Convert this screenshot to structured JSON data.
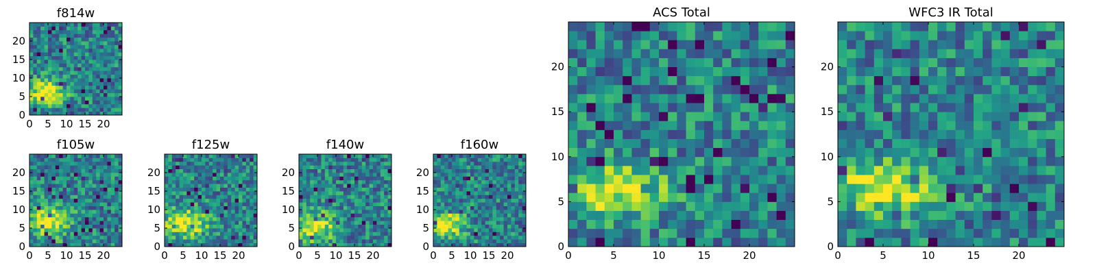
{
  "chart_data": [
    {
      "type": "heatmap",
      "title": "f814w",
      "colormap": "viridis",
      "grid_shape": [
        25,
        25
      ],
      "xlim": [
        0,
        25
      ],
      "ylim": [
        0,
        25
      ],
      "xticks": [
        0,
        5,
        10,
        15,
        20
      ],
      "yticks": [
        0,
        5,
        10,
        15,
        20
      ],
      "bright_region": {
        "x": [
          0,
          9
        ],
        "y": [
          3,
          9
        ]
      },
      "seed": 11
    },
    {
      "type": "heatmap",
      "title": "f105w",
      "colormap": "viridis",
      "grid_shape": [
        25,
        25
      ],
      "xlim": [
        0,
        25
      ],
      "ylim": [
        0,
        25
      ],
      "xticks": [
        0,
        5,
        10,
        15,
        20
      ],
      "yticks": [
        0,
        5,
        10,
        15,
        20
      ],
      "bright_region": {
        "x": [
          0,
          10
        ],
        "y": [
          3,
          11
        ]
      },
      "seed": 23
    },
    {
      "type": "heatmap",
      "title": "f125w",
      "colormap": "viridis",
      "grid_shape": [
        25,
        25
      ],
      "xlim": [
        0,
        25
      ],
      "ylim": [
        0,
        25
      ],
      "xticks": [
        0,
        5,
        10,
        15,
        20
      ],
      "yticks": [
        0,
        5,
        10,
        15,
        20
      ],
      "bright_region": {
        "x": [
          0,
          11
        ],
        "y": [
          3,
          10
        ]
      },
      "seed": 37
    },
    {
      "type": "heatmap",
      "title": "f140w",
      "colormap": "viridis",
      "grid_shape": [
        25,
        25
      ],
      "xlim": [
        0,
        25
      ],
      "ylim": [
        0,
        25
      ],
      "xticks": [
        0,
        5,
        10,
        15,
        20
      ],
      "yticks": [
        0,
        5,
        10,
        15,
        20
      ],
      "bright_region": {
        "x": [
          0,
          9
        ],
        "y": [
          2,
          9
        ]
      },
      "seed": 41
    },
    {
      "type": "heatmap",
      "title": "f160w",
      "colormap": "viridis",
      "grid_shape": [
        25,
        25
      ],
      "xlim": [
        0,
        25
      ],
      "ylim": [
        0,
        25
      ],
      "xticks": [
        0,
        5,
        10,
        15,
        20
      ],
      "yticks": [
        0,
        5,
        10,
        15,
        20
      ],
      "bright_region": {
        "x": [
          0,
          8
        ],
        "y": [
          3,
          9
        ]
      },
      "seed": 53
    },
    {
      "type": "heatmap",
      "title": "ACS Total",
      "colormap": "viridis",
      "grid_shape": [
        25,
        25
      ],
      "xlim": [
        0,
        25
      ],
      "ylim": [
        0,
        25
      ],
      "xticks": [
        0,
        5,
        10,
        15,
        20
      ],
      "yticks": [
        0,
        5,
        10,
        15,
        20
      ],
      "bright_region": {
        "x": [
          0,
          10
        ],
        "y": [
          4,
          9
        ]
      },
      "seed": 67
    },
    {
      "type": "heatmap",
      "title": "WFC3 IR Total",
      "colormap": "viridis",
      "grid_shape": [
        25,
        25
      ],
      "xlim": [
        0,
        25
      ],
      "ylim": [
        0,
        25
      ],
      "xticks": [
        0,
        5,
        10,
        15,
        20
      ],
      "yticks": [
        0,
        5,
        10,
        15,
        20
      ],
      "bright_region": {
        "x": [
          0,
          10
        ],
        "y": [
          4,
          9
        ]
      },
      "seed": 79
    }
  ]
}
